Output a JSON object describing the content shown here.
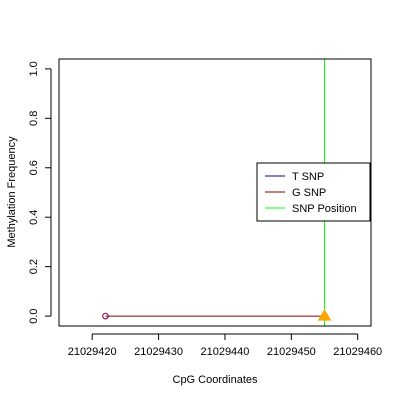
{
  "chart_data": {
    "type": "line",
    "xlabel": "CpG Coordinates",
    "ylabel": "Methylation Frequency",
    "xlim": [
      21029415,
      21029462
    ],
    "ylim": [
      -0.04,
      1.04
    ],
    "x_ticks": [
      21029420,
      21029430,
      21029440,
      21029450,
      21029460
    ],
    "x_tick_labels": [
      "21029420",
      "21029430",
      "21029440",
      "21029450",
      "21029460"
    ],
    "y_ticks": [
      0.0,
      0.2,
      0.4,
      0.6,
      0.8,
      1.0
    ],
    "y_tick_labels": [
      "0.0",
      "0.2",
      "0.4",
      "0.6",
      "0.8",
      "1.0"
    ],
    "series": [
      {
        "name": "T SNP",
        "color": "#000080",
        "points": []
      },
      {
        "name": "G SNP",
        "color": "#800000",
        "points": [
          [
            21029422,
            0.0
          ],
          [
            21029455,
            0.0
          ]
        ]
      }
    ],
    "marker_open_circle": {
      "x": 21029422,
      "y": 0.0,
      "color": "#800040"
    },
    "marker_triangle": {
      "x": 21029455,
      "y": 0.0,
      "color": "#ffa500"
    },
    "snp_position": {
      "x": 21029455,
      "color": "#00ff00"
    },
    "legend": {
      "placement": "right",
      "entries": [
        {
          "label": "T SNP",
          "color": "#000080"
        },
        {
          "label": "G SNP",
          "color": "#800000"
        },
        {
          "label": "SNP Position",
          "color": "#00ff00"
        }
      ]
    }
  }
}
